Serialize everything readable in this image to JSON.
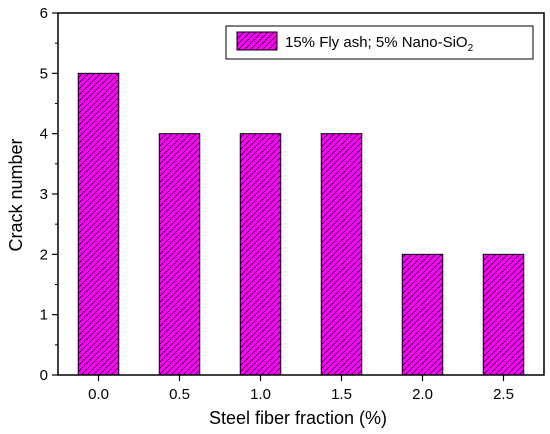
{
  "chart_data": {
    "type": "bar",
    "categories": [
      "0.0",
      "0.5",
      "1.0",
      "1.5",
      "2.0",
      "2.5"
    ],
    "series": [
      {
        "name": "15% Fly ash; 5% Nano-SiO2",
        "values": [
          5,
          4,
          4,
          4,
          2,
          2
        ]
      }
    ],
    "xlabel": "Steel fiber fraction (%)",
    "ylabel": "Crack number",
    "ylim": [
      0,
      6
    ],
    "yticks": [
      "0",
      "1",
      "2",
      "3",
      "4",
      "5",
      "6"
    ],
    "grid": false,
    "legend_position": "top-right",
    "legend": {
      "label_main": "15% Fly ash; 5% Nano-SiO",
      "label_sub": "2"
    },
    "colors": {
      "bar_fill": "#ff00ff",
      "bar_hatch": "#000000",
      "axis": "#000000"
    }
  }
}
